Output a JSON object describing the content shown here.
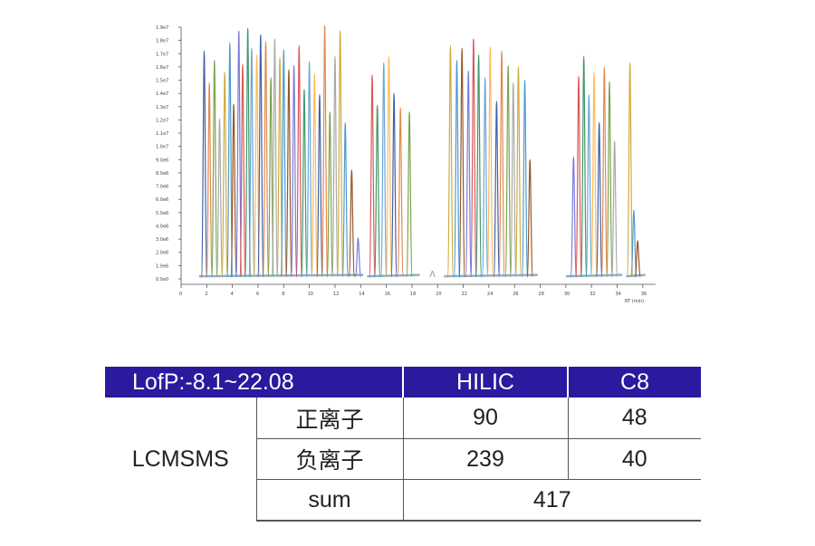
{
  "chart_data": {
    "type": "line",
    "title": "",
    "xlabel": "RT (min)",
    "ylabel": "",
    "x_ticks": [
      "0",
      "2",
      "4",
      "6",
      "8",
      "10",
      "12",
      "14",
      "16",
      "18",
      "20",
      "22",
      "24",
      "26",
      "28",
      "30",
      "32",
      "34",
      "36"
    ],
    "y_ticks": [
      "0.0e0",
      "1.0e6",
      "2.0e6",
      "3.0e6",
      "4.0e6",
      "5.0e6",
      "6.0e6",
      "7.0e6",
      "8.0e6",
      "9.0e6",
      "1.0e7",
      "1.1e7",
      "1.2e7",
      "1.3e7",
      "1.4e7",
      "1.5e7",
      "1.6e7",
      "1.7e7",
      "1.8e7",
      "1.9e7"
    ],
    "xlim": [
      0,
      37
    ],
    "ylim": [
      0,
      19000000
    ],
    "grid": false,
    "series_colors": [
      "#2b4f9e",
      "#e07b39",
      "#6a9a3a",
      "#a0a0a0",
      "#c9a227",
      "#3a8fc7",
      "#8b4513",
      "#6b6bd6",
      "#d64545",
      "#2e8b57",
      "#5b9bd5",
      "#ffb347"
    ],
    "peaks": [
      {
        "rt": 1.8,
        "h": 17200000
      },
      {
        "rt": 2.2,
        "h": 14800000
      },
      {
        "rt": 2.6,
        "h": 16500000
      },
      {
        "rt": 3.0,
        "h": 12100000
      },
      {
        "rt": 3.4,
        "h": 15600000
      },
      {
        "rt": 3.8,
        "h": 17800000
      },
      {
        "rt": 4.1,
        "h": 13200000
      },
      {
        "rt": 4.5,
        "h": 18700000
      },
      {
        "rt": 4.8,
        "h": 16200000
      },
      {
        "rt": 5.2,
        "h": 18900000
      },
      {
        "rt": 5.5,
        "h": 17400000
      },
      {
        "rt": 5.9,
        "h": 16900000
      },
      {
        "rt": 6.2,
        "h": 18400000
      },
      {
        "rt": 6.6,
        "h": 17900000
      },
      {
        "rt": 7.0,
        "h": 15200000
      },
      {
        "rt": 7.3,
        "h": 18100000
      },
      {
        "rt": 7.7,
        "h": 16700000
      },
      {
        "rt": 8.0,
        "h": 17300000
      },
      {
        "rt": 8.4,
        "h": 15800000
      },
      {
        "rt": 8.8,
        "h": 16100000
      },
      {
        "rt": 9.2,
        "h": 17600000
      },
      {
        "rt": 9.6,
        "h": 14300000
      },
      {
        "rt": 10.0,
        "h": 16400000
      },
      {
        "rt": 10.4,
        "h": 15500000
      },
      {
        "rt": 10.8,
        "h": 13900000
      },
      {
        "rt": 11.2,
        "h": 19100000
      },
      {
        "rt": 11.6,
        "h": 12600000
      },
      {
        "rt": 12.0,
        "h": 16800000
      },
      {
        "rt": 12.4,
        "h": 18700000
      },
      {
        "rt": 12.8,
        "h": 11800000
      },
      {
        "rt": 13.3,
        "h": 8200000
      },
      {
        "rt": 13.8,
        "h": 3100000
      },
      {
        "rt": 14.9,
        "h": 15400000
      },
      {
        "rt": 15.3,
        "h": 13100000
      },
      {
        "rt": 15.8,
        "h": 16300000
      },
      {
        "rt": 16.2,
        "h": 16800000
      },
      {
        "rt": 16.6,
        "h": 14000000
      },
      {
        "rt": 17.1,
        "h": 12900000
      },
      {
        "rt": 17.8,
        "h": 12600000
      },
      {
        "rt": 19.6,
        "h": 600000
      },
      {
        "rt": 21.0,
        "h": 17600000
      },
      {
        "rt": 21.5,
        "h": 16500000
      },
      {
        "rt": 21.9,
        "h": 17400000
      },
      {
        "rt": 22.4,
        "h": 15700000
      },
      {
        "rt": 22.8,
        "h": 18100000
      },
      {
        "rt": 23.2,
        "h": 16900000
      },
      {
        "rt": 23.7,
        "h": 15200000
      },
      {
        "rt": 24.1,
        "h": 17500000
      },
      {
        "rt": 24.6,
        "h": 13400000
      },
      {
        "rt": 25.0,
        "h": 17200000
      },
      {
        "rt": 25.5,
        "h": 16100000
      },
      {
        "rt": 25.9,
        "h": 14800000
      },
      {
        "rt": 26.3,
        "h": 16000000
      },
      {
        "rt": 26.8,
        "h": 15000000
      },
      {
        "rt": 27.2,
        "h": 9000000
      },
      {
        "rt": 30.6,
        "h": 9200000
      },
      {
        "rt": 31.0,
        "h": 15300000
      },
      {
        "rt": 31.4,
        "h": 16800000
      },
      {
        "rt": 31.8,
        "h": 13900000
      },
      {
        "rt": 32.2,
        "h": 15600000
      },
      {
        "rt": 32.6,
        "h": 11800000
      },
      {
        "rt": 33.0,
        "h": 16000000
      },
      {
        "rt": 33.4,
        "h": 14900000
      },
      {
        "rt": 33.8,
        "h": 10400000
      },
      {
        "rt": 35.0,
        "h": 16300000
      },
      {
        "rt": 35.3,
        "h": 5200000
      },
      {
        "rt": 35.6,
        "h": 2900000
      }
    ]
  },
  "table": {
    "header": {
      "title": "LofP:-8.1~22.08",
      "col1": "HILIC",
      "col2": "C8"
    },
    "group_label": "LCMSMS",
    "rows": [
      {
        "label": "正离子",
        "hilic": "90",
        "c8": "48"
      },
      {
        "label": "负离子",
        "hilic": "239",
        "c8": "40"
      }
    ],
    "sum": {
      "label": "sum",
      "value": "417"
    }
  }
}
